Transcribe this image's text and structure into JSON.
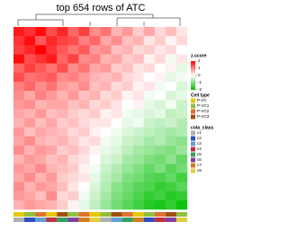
{
  "chart_data": {
    "type": "heatmap",
    "title": "top 654 rows of ATC",
    "colorbar_title": "z-score",
    "colorbar_ticks": [
      2,
      1,
      0,
      -1,
      -2
    ],
    "zlim": [
      -2,
      2
    ],
    "colors": {
      "high": "#ff0000",
      "mid": "#ffffff",
      "low": "#00c000"
    },
    "matrix": [
      [
        1.8,
        1.6,
        1.9,
        1.4,
        1.7,
        1.2,
        1.5,
        0.9,
        1.1,
        0.6,
        0.8,
        0.4,
        0.7,
        0.3,
        0.5,
        0.2
      ],
      [
        1.6,
        1.9,
        1.3,
        1.7,
        1.5,
        1.4,
        1.0,
        1.2,
        0.7,
        0.9,
        0.5,
        0.6,
        0.2,
        0.4,
        0.1,
        0.3
      ],
      [
        1.5,
        1.7,
        2.0,
        1.6,
        1.3,
        1.1,
        1.3,
        0.8,
        0.9,
        0.5,
        0.6,
        0.3,
        0.4,
        0.2,
        0.3,
        0.0
      ],
      [
        1.9,
        1.4,
        1.6,
        1.8,
        1.2,
        1.5,
        0.9,
        1.0,
        0.6,
        0.7,
        0.4,
        0.5,
        0.1,
        0.3,
        -0.1,
        0.2
      ],
      [
        1.2,
        1.5,
        1.3,
        1.1,
        1.4,
        0.9,
        1.1,
        0.7,
        0.8,
        0.4,
        0.5,
        0.2,
        0.3,
        0.0,
        0.1,
        -0.2
      ],
      [
        1.4,
        1.1,
        1.2,
        1.3,
        0.9,
        1.0,
        0.8,
        0.6,
        0.5,
        0.6,
        0.3,
        0.2,
        0.0,
        0.1,
        -0.2,
        -0.1
      ],
      [
        1.0,
        1.2,
        0.9,
        1.1,
        0.8,
        0.7,
        0.9,
        0.5,
        0.6,
        0.3,
        0.4,
        0.1,
        0.2,
        -0.1,
        0.0,
        -0.3
      ],
      [
        0.9,
        0.7,
        1.0,
        0.8,
        0.6,
        0.8,
        0.5,
        0.6,
        0.3,
        0.4,
        0.1,
        0.2,
        -0.1,
        0.0,
        -0.3,
        -0.2
      ],
      [
        0.8,
        0.9,
        0.6,
        0.7,
        0.7,
        0.5,
        0.6,
        0.3,
        0.4,
        0.2,
        0.0,
        0.1,
        -0.2,
        -0.3,
        -0.1,
        -0.4
      ],
      [
        0.7,
        0.6,
        0.8,
        0.5,
        0.6,
        0.4,
        0.3,
        0.4,
        0.1,
        0.2,
        -0.1,
        -0.2,
        -0.3,
        -0.2,
        -0.5,
        -0.4
      ],
      [
        0.6,
        0.8,
        0.5,
        0.7,
        0.4,
        0.5,
        0.3,
        0.2,
        0.2,
        0.0,
        -0.2,
        -0.1,
        -0.4,
        -0.5,
        -0.4,
        -0.6
      ],
      [
        0.8,
        0.5,
        0.7,
        0.6,
        0.5,
        0.3,
        0.4,
        0.1,
        0.0,
        -0.1,
        -0.3,
        -0.4,
        -0.5,
        -0.6,
        -0.7,
        -0.6
      ],
      [
        0.7,
        0.9,
        0.6,
        0.5,
        0.6,
        0.4,
        0.2,
        0.3,
        -0.1,
        -0.2,
        -0.4,
        -0.5,
        -0.7,
        -0.6,
        -0.8,
        -0.9
      ],
      [
        0.9,
        0.6,
        0.8,
        0.7,
        0.4,
        0.5,
        0.3,
        0.1,
        -0.2,
        -0.3,
        -0.5,
        -0.7,
        -0.8,
        -0.9,
        -1.0,
        -0.8
      ],
      [
        0.6,
        0.8,
        0.7,
        0.5,
        0.6,
        0.3,
        0.2,
        0.0,
        -0.3,
        -0.4,
        -0.7,
        -0.8,
        -1.0,
        -1.1,
        -0.9,
        -1.2
      ],
      [
        0.8,
        0.7,
        0.9,
        0.6,
        0.5,
        0.4,
        0.1,
        -0.1,
        -0.4,
        -0.6,
        -0.8,
        -1.0,
        -1.2,
        -1.0,
        -1.3,
        -1.1
      ],
      [
        0.7,
        0.9,
        0.6,
        0.8,
        0.4,
        0.3,
        0.2,
        -0.2,
        -0.5,
        -0.7,
        -1.0,
        -1.1,
        -1.3,
        -1.4,
        -1.2,
        -1.5
      ],
      [
        0.9,
        0.6,
        0.8,
        0.7,
        0.5,
        0.2,
        0.0,
        -0.3,
        -0.6,
        -0.9,
        -1.1,
        -1.3,
        -1.4,
        -1.6,
        -1.5,
        -1.3
      ],
      [
        0.8,
        0.7,
        0.5,
        0.9,
        0.3,
        0.4,
        -0.1,
        -0.4,
        -0.7,
        -1.0,
        -1.2,
        -1.4,
        -1.6,
        -1.5,
        -1.7,
        -1.6
      ],
      [
        0.6,
        0.8,
        0.7,
        0.6,
        0.4,
        0.1,
        -0.2,
        -0.5,
        -0.8,
        -1.1,
        -1.3,
        -1.5,
        -1.7,
        -1.8,
        -1.6,
        -1.9
      ]
    ],
    "cell_type_title": "Cell type",
    "cell_types": [
      {
        "name": "P-VC",
        "color": "#e6c800"
      },
      {
        "name": "P-VC1",
        "color": "#90c040"
      },
      {
        "name": "P-VC2",
        "color": "#e07030"
      },
      {
        "name": "P-VC3",
        "color": "#a05010"
      }
    ],
    "class_title": "cola_class",
    "classes": [
      {
        "name": "c1",
        "color": "#b0b0b0"
      },
      {
        "name": "c2",
        "color": "#3050c0"
      },
      {
        "name": "c3",
        "color": "#60a0d0"
      },
      {
        "name": "c4",
        "color": "#c03040"
      },
      {
        "name": "c5",
        "color": "#30a060"
      },
      {
        "name": "c6",
        "color": "#8040a0"
      },
      {
        "name": "c7",
        "color": "#d08020"
      },
      {
        "name": "c8",
        "color": "#e0d040"
      }
    ],
    "column_cell_type": [
      0,
      1,
      2,
      0,
      3,
      1,
      2,
      0,
      1,
      3,
      2,
      0,
      1,
      2,
      3,
      1
    ],
    "column_class": [
      0,
      1,
      2,
      3,
      4,
      5,
      6,
      7,
      0,
      2,
      4,
      6,
      1,
      3,
      5,
      7
    ]
  }
}
